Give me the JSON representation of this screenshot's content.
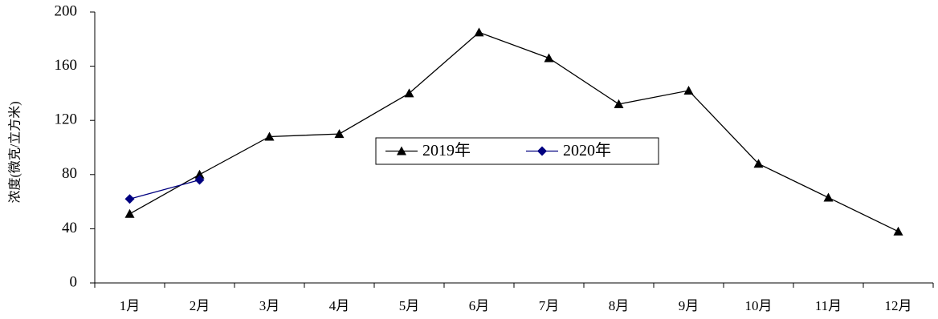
{
  "chart_data": {
    "type": "line",
    "y_label": "浓度(微克/立方米)",
    "categories": [
      "1月",
      "2月",
      "3月",
      "4月",
      "5月",
      "6月",
      "7月",
      "8月",
      "9月",
      "10月",
      "11月",
      "12月"
    ],
    "series": [
      {
        "name": "2019年",
        "color": "#000000",
        "marker": "triangle",
        "values": [
          51,
          80,
          108,
          110,
          140,
          185,
          166,
          132,
          142,
          88,
          63,
          38
        ]
      },
      {
        "name": "2020年",
        "color": "#000080",
        "marker": "diamond",
        "values": [
          62,
          76,
          null,
          null,
          null,
          null,
          null,
          null,
          null,
          null,
          null,
          null
        ]
      }
    ],
    "ylim": [
      0,
      200
    ],
    "yticks": [
      0,
      40,
      80,
      120,
      160,
      200
    ],
    "grid": false
  }
}
